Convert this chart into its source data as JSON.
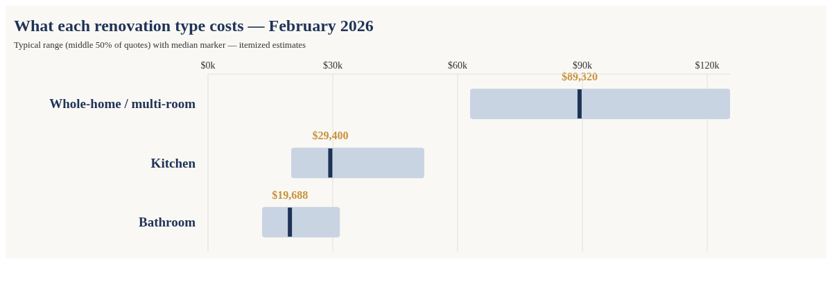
{
  "chart_data": {
    "type": "box",
    "orientation": "horizontal",
    "title": "What each renovation type costs — February 2026",
    "subtitle": "Typical range (middle 50% of quotes) with median marker — itemized estimates",
    "categories": [
      "Whole-home / multi-room",
      "Kitchen",
      "Bathroom"
    ],
    "series": [
      {
        "color": "#c9d4e3",
        "boxes": [
          {
            "low": 63000,
            "q1": 63000,
            "median": 89320,
            "q3": 125500,
            "high": 125500
          },
          {
            "low": 20000,
            "q1": 20000,
            "median": 29400,
            "q3": 52000,
            "high": 52000
          },
          {
            "low": 13000,
            "q1": 13000,
            "median": 19688,
            "q3": 31700,
            "high": 31700
          }
        ]
      }
    ],
    "annotations": [
      {
        "text": "$89,320",
        "x": 89320,
        "y": "Whole-home / multi-room"
      },
      {
        "text": "$29,400",
        "x": 29400,
        "y": "Kitchen"
      },
      {
        "text": "$19,688",
        "x": 19688,
        "y": "Bathroom"
      }
    ],
    "xlim": [
      0,
      125500
    ],
    "xticks": [
      {
        "value": 0,
        "label": "$0k"
      },
      {
        "value": 30000,
        "label": "$30k"
      },
      {
        "value": 60000,
        "label": "$60k"
      },
      {
        "value": 90000,
        "label": "$90k"
      },
      {
        "value": 120000,
        "label": "$120k"
      }
    ],
    "grid": "x"
  }
}
